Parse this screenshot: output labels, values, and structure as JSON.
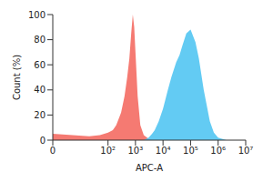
{
  "chart_data": {
    "type": "area",
    "x_label": "APC-A",
    "y_label": "Count (%)",
    "log": "x",
    "xlim": [
      0,
      10000000
    ],
    "xticks": [
      0,
      {
        "value": 100,
        "label": "10²"
      },
      {
        "value": 1000,
        "label": "10³"
      },
      {
        "value": 10000,
        "label": "10⁴"
      },
      {
        "value": 100000,
        "label": "10⁵"
      },
      {
        "value": 1000000,
        "label": "10⁶"
      },
      {
        "value": 10000000,
        "label": "10⁷"
      }
    ],
    "ylim": [
      0,
      100
    ],
    "yticks": [
      0,
      20,
      40,
      60,
      80,
      100
    ],
    "grid": false,
    "x": [
      0,
      20,
      50,
      100,
      150,
      200,
      300,
      400,
      500,
      600,
      700,
      800,
      900,
      1000,
      1200,
      1500,
      2000,
      3000,
      4000,
      5000,
      7000,
      10000,
      15000,
      20000,
      30000,
      40000,
      50000,
      70000,
      100000,
      150000,
      200000,
      300000,
      500000,
      700000,
      1000000,
      2000000,
      10000000
    ],
    "series": [
      {
        "color": "#f46b63",
        "values": [
          5,
          3,
          4,
          6,
          8,
          12,
          22,
          35,
          50,
          65,
          85,
          100,
          90,
          70,
          35,
          12,
          4,
          1,
          0,
          0,
          0,
          0,
          0,
          0,
          0,
          0,
          0,
          0,
          0,
          0,
          0,
          0,
          0,
          0,
          0,
          0,
          0
        ]
      },
      {
        "color": "#52c5f2",
        "values": [
          0,
          0,
          0,
          0,
          0,
          0,
          0,
          0,
          0,
          0,
          0,
          0,
          0,
          0,
          0,
          0,
          0,
          2,
          5,
          8,
          15,
          25,
          40,
          50,
          62,
          68,
          75,
          85,
          88,
          78,
          65,
          40,
          15,
          6,
          2,
          0,
          0
        ]
      }
    ]
  }
}
